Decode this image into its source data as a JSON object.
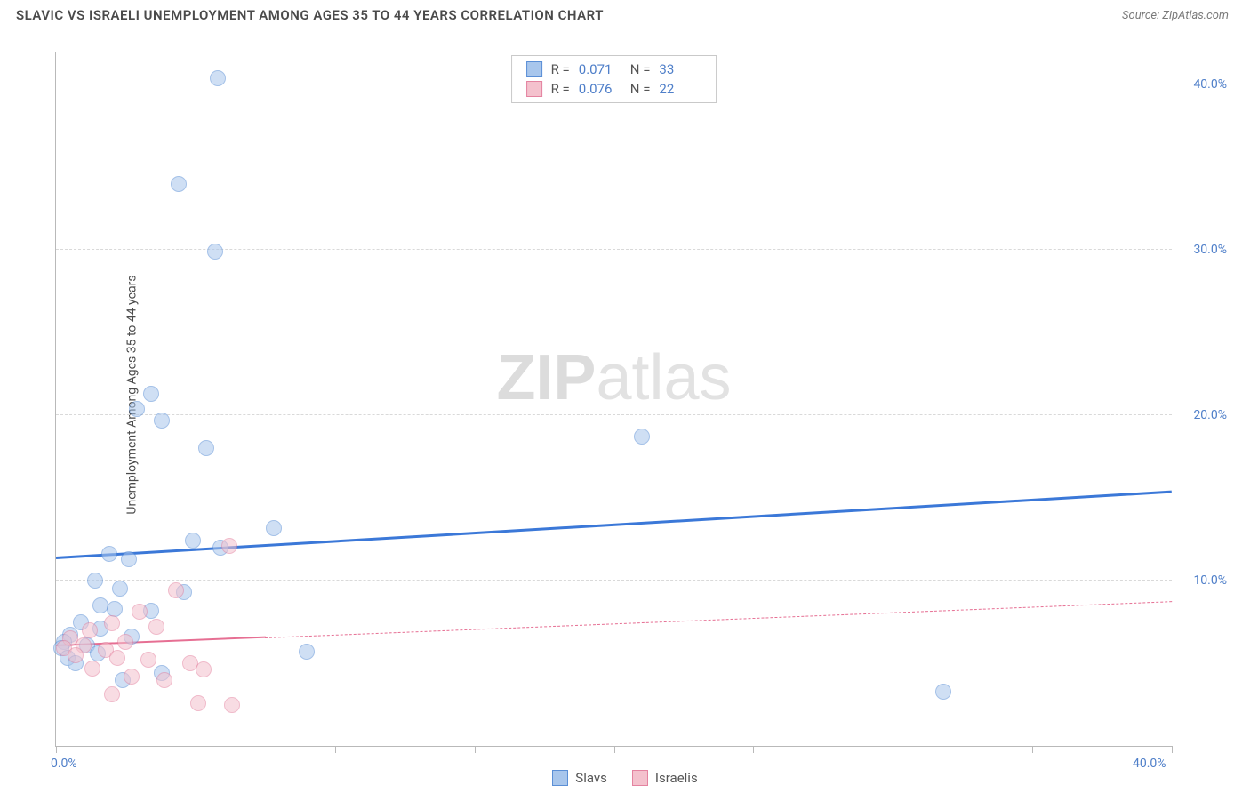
{
  "title": "SLAVIC VS ISRAELI UNEMPLOYMENT AMONG AGES 35 TO 44 YEARS CORRELATION CHART",
  "source_label": "Source: ZipAtlas.com",
  "y_axis_label": "Unemployment Among Ages 35 to 44 years",
  "watermark": {
    "bold": "ZIP",
    "thin": "atlas"
  },
  "chart": {
    "type": "scatter",
    "background_color": "#ffffff",
    "grid_color": "#d9d9d9",
    "axis_color": "#b9b9b9",
    "tick_label_color": "#4f7fc9",
    "tick_fontsize": 14,
    "xlim": [
      0,
      40
    ],
    "ylim": [
      0,
      42
    ],
    "y_ticks": [
      10,
      20,
      30,
      40
    ],
    "y_tick_labels": [
      "10.0%",
      "20.0%",
      "30.0%",
      "40.0%"
    ],
    "x_ticks": [
      0,
      5,
      10,
      15,
      20,
      25,
      30,
      35,
      40
    ],
    "x_tick_labels_shown": {
      "0": "0.0%",
      "40": "40.0%"
    },
    "marker_radius": 9,
    "marker_opacity": 0.55,
    "marker_border_width": 1.2,
    "series": [
      {
        "name": "Slavs",
        "legend_label": "Slavs",
        "color_fill": "#a8c6ec",
        "color_border": "#5b8fd6",
        "trend_color": "#3b78d8",
        "trend_width": 3,
        "trend": {
          "x1": 0,
          "y1": 11.3,
          "x2": 40,
          "y2": 15.3,
          "solid_until_x": 40
        },
        "R_label": "R =",
        "R": "0.071",
        "N_label": "N =",
        "N": "33",
        "points": [
          {
            "x": 5.8,
            "y": 40.4
          },
          {
            "x": 4.4,
            "y": 34.0
          },
          {
            "x": 5.7,
            "y": 29.9
          },
          {
            "x": 3.4,
            "y": 21.3
          },
          {
            "x": 2.9,
            "y": 20.4
          },
          {
            "x": 3.8,
            "y": 19.7
          },
          {
            "x": 21.0,
            "y": 18.7
          },
          {
            "x": 5.4,
            "y": 18.0
          },
          {
            "x": 7.8,
            "y": 13.2
          },
          {
            "x": 4.9,
            "y": 12.4
          },
          {
            "x": 5.9,
            "y": 12.0
          },
          {
            "x": 1.9,
            "y": 11.6
          },
          {
            "x": 2.6,
            "y": 11.3
          },
          {
            "x": 1.4,
            "y": 10.0
          },
          {
            "x": 2.3,
            "y": 9.5
          },
          {
            "x": 4.6,
            "y": 9.3
          },
          {
            "x": 1.6,
            "y": 8.5
          },
          {
            "x": 2.1,
            "y": 8.3
          },
          {
            "x": 3.4,
            "y": 8.2
          },
          {
            "x": 0.9,
            "y": 7.5
          },
          {
            "x": 1.6,
            "y": 7.1
          },
          {
            "x": 0.5,
            "y": 6.7
          },
          {
            "x": 2.7,
            "y": 6.6
          },
          {
            "x": 0.3,
            "y": 6.3
          },
          {
            "x": 1.1,
            "y": 6.1
          },
          {
            "x": 0.2,
            "y": 5.9
          },
          {
            "x": 1.5,
            "y": 5.6
          },
          {
            "x": 9.0,
            "y": 5.7
          },
          {
            "x": 0.4,
            "y": 5.3
          },
          {
            "x": 3.8,
            "y": 4.4
          },
          {
            "x": 2.4,
            "y": 4.0
          },
          {
            "x": 31.8,
            "y": 3.3
          },
          {
            "x": 0.7,
            "y": 5.0
          }
        ]
      },
      {
        "name": "Israelis",
        "legend_label": "Israelis",
        "color_fill": "#f4c1cd",
        "color_border": "#e483a0",
        "trend_color": "#e66f93",
        "trend_width": 2,
        "trend": {
          "x1": 0,
          "y1": 6.0,
          "x2": 40,
          "y2": 8.7,
          "solid_until_x": 7.5
        },
        "R_label": "R =",
        "R": "0.076",
        "N_label": "N =",
        "N": "22",
        "points": [
          {
            "x": 6.2,
            "y": 12.1
          },
          {
            "x": 4.3,
            "y": 9.4
          },
          {
            "x": 3.0,
            "y": 8.1
          },
          {
            "x": 2.0,
            "y": 7.4
          },
          {
            "x": 3.6,
            "y": 7.2
          },
          {
            "x": 1.2,
            "y": 7.0
          },
          {
            "x": 0.5,
            "y": 6.5
          },
          {
            "x": 2.5,
            "y": 6.3
          },
          {
            "x": 1.0,
            "y": 6.1
          },
          {
            "x": 0.3,
            "y": 5.9
          },
          {
            "x": 1.8,
            "y": 5.8
          },
          {
            "x": 0.7,
            "y": 5.5
          },
          {
            "x": 2.2,
            "y": 5.3
          },
          {
            "x": 3.3,
            "y": 5.2
          },
          {
            "x": 4.8,
            "y": 5.0
          },
          {
            "x": 1.3,
            "y": 4.7
          },
          {
            "x": 5.3,
            "y": 4.6
          },
          {
            "x": 2.7,
            "y": 4.2
          },
          {
            "x": 3.9,
            "y": 4.0
          },
          {
            "x": 2.0,
            "y": 3.1
          },
          {
            "x": 5.1,
            "y": 2.6
          },
          {
            "x": 6.3,
            "y": 2.5
          }
        ]
      }
    ]
  }
}
